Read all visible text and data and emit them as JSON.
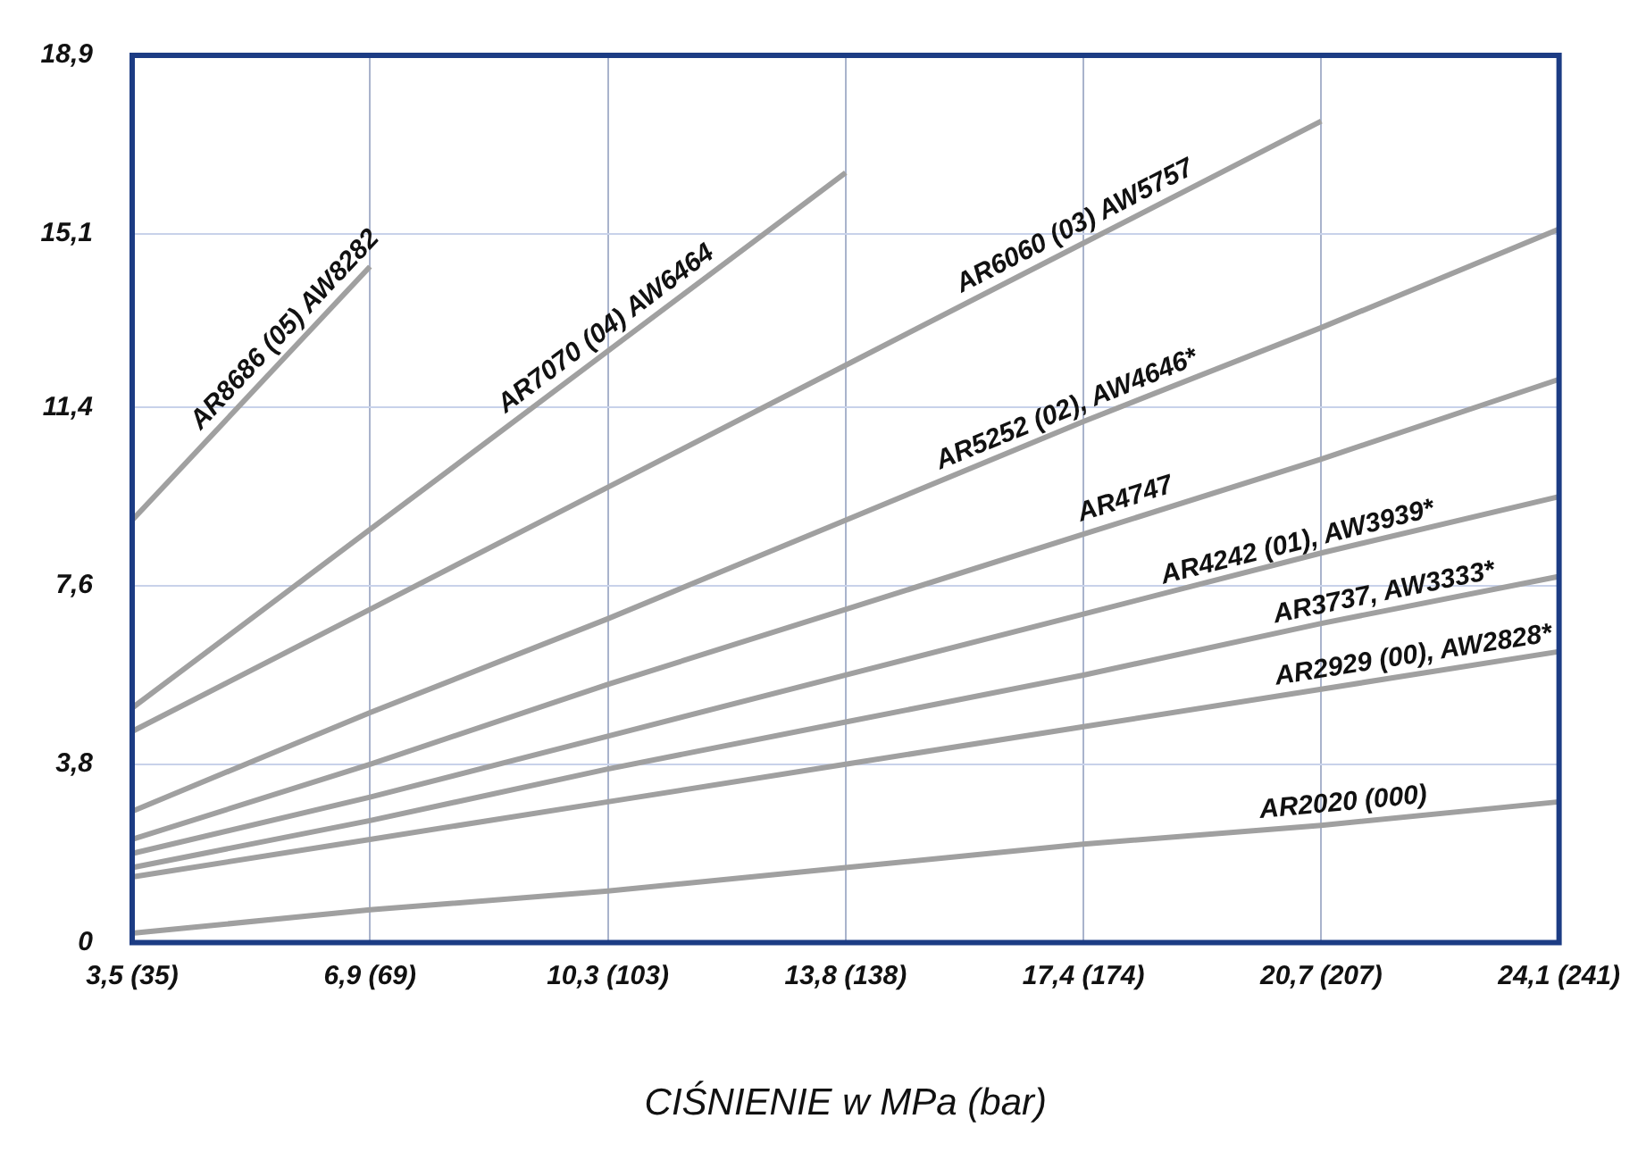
{
  "chart_data": {
    "type": "line",
    "xlabel": "CIŚNIENIE w MPa (bar)",
    "categories": [
      "3,5 (35)",
      "6,9 (69)",
      "10,3 (103)",
      "13,8 (138)",
      "17,4 (174)",
      "20,7 (207)",
      "24,1 (241)"
    ],
    "ylim": [
      0,
      18.9
    ],
    "yticks": [
      {
        "value": 0,
        "label": "0"
      },
      {
        "value": 3.8,
        "label": "3,8"
      },
      {
        "value": 7.6,
        "label": "7,6"
      },
      {
        "value": 11.4,
        "label": "11,4"
      },
      {
        "value": 15.1,
        "label": "15,1"
      },
      {
        "value": 18.9,
        "label": "18,9"
      }
    ],
    "grid": true,
    "legend": false,
    "marker": "none",
    "line_style": "solid",
    "series": [
      {
        "name": "AR8686 (05) AW8282",
        "color": "#a0a0a0",
        "values": [
          9.0,
          14.4,
          null,
          null,
          null,
          null,
          null
        ]
      },
      {
        "name": "AR7070 (04) AW6464",
        "color": "#a0a0a0",
        "values": [
          5.0,
          8.8,
          12.6,
          16.4,
          null,
          null,
          null
        ]
      },
      {
        "name": "AR6060 (03) AW5757",
        "color": "#a0a0a0",
        "values": [
          4.5,
          7.1,
          9.7,
          12.3,
          14.9,
          17.5,
          null
        ]
      },
      {
        "name": "AR5252 (02), AW4646*",
        "color": "#a0a0a0",
        "values": [
          2.8,
          4.9,
          6.9,
          9.0,
          11.1,
          13.1,
          15.2
        ]
      },
      {
        "name": "AR4747",
        "color": "#a0a0a0",
        "values": [
          2.2,
          3.8,
          5.5,
          7.1,
          8.7,
          10.3,
          12.0
        ]
      },
      {
        "name": "AR4242 (01), AW3939*",
        "color": "#a0a0a0",
        "values": [
          1.9,
          3.1,
          4.4,
          5.7,
          7.0,
          8.3,
          9.5
        ]
      },
      {
        "name": "AR3737, AW3333*",
        "color": "#a0a0a0",
        "values": [
          1.6,
          2.6,
          3.7,
          4.7,
          5.7,
          6.8,
          7.8
        ]
      },
      {
        "name": "AR2929 (00), AW2828*",
        "color": "#a0a0a0",
        "values": [
          1.4,
          2.2,
          3.0,
          3.8,
          4.6,
          5.4,
          6.2
        ]
      },
      {
        "name": "AR2020 (000)",
        "color": "#a0a0a0",
        "values": [
          0.2,
          0.7,
          1.1,
          1.6,
          2.1,
          2.5,
          3.0
        ]
      }
    ]
  }
}
